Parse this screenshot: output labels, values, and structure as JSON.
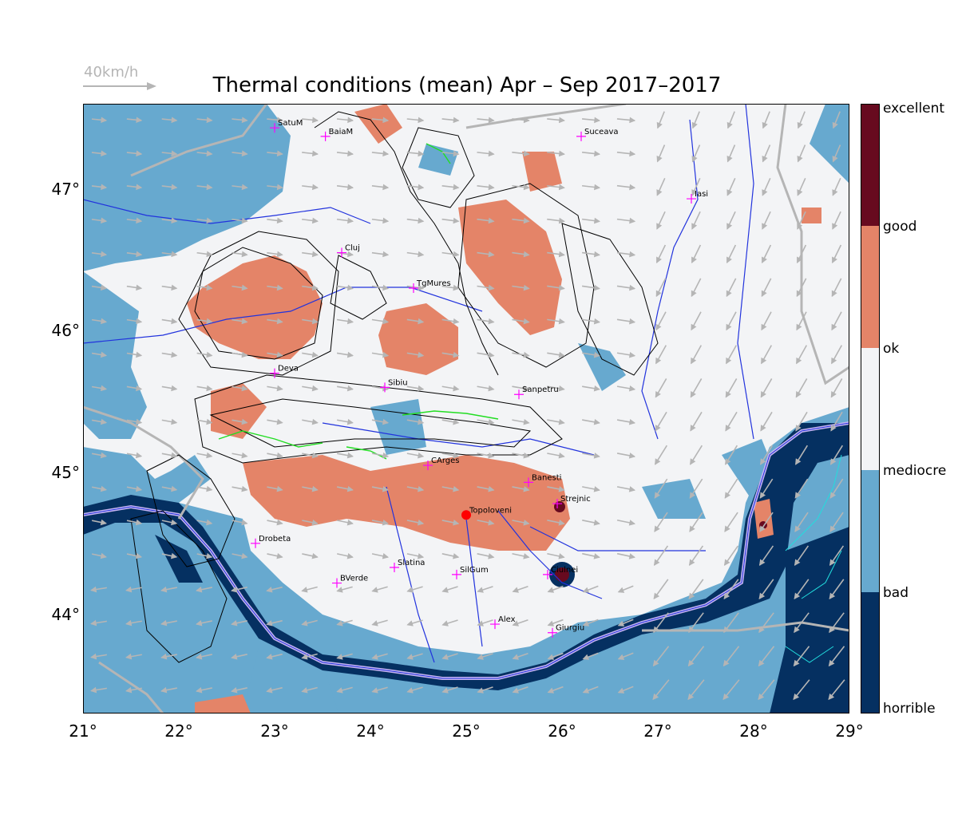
{
  "title": "Thermal conditions (mean) Apr – Sep  2017–2017",
  "scale": {
    "label": "40km/h"
  },
  "map": {
    "lon_range": [
      21,
      29
    ],
    "lat_range": [
      43.3,
      47.6
    ],
    "lon_ticks": [
      "21°",
      "22°",
      "23°",
      "24°",
      "25°",
      "26°",
      "27°",
      "28°",
      "29°"
    ],
    "lat_ticks": [
      "47°",
      "46°",
      "45°",
      "44°"
    ],
    "lat_tick_values": [
      47,
      46,
      45,
      44
    ]
  },
  "legend": {
    "labels": [
      "excellent",
      "good",
      "ok",
      "mediocre",
      "bad",
      "horrible"
    ],
    "colors": {
      "excellent": "#670a1f",
      "good": "#e48468",
      "ok": "#f3f4f6",
      "mediocre": "#f3f4f6",
      "bad": "#67a9cf",
      "horrible": "#053061"
    }
  },
  "cities": [
    {
      "name": "SatuM",
      "lon": 23.0,
      "lat": 47.43
    },
    {
      "name": "BaiaM",
      "lon": 23.53,
      "lat": 47.37
    },
    {
      "name": "Suceava",
      "lon": 26.2,
      "lat": 47.37
    },
    {
      "name": "Iasi",
      "lon": 27.35,
      "lat": 46.93
    },
    {
      "name": "Cluj",
      "lon": 23.7,
      "lat": 46.55
    },
    {
      "name": "TgMures",
      "lon": 24.45,
      "lat": 46.3
    },
    {
      "name": "Deva",
      "lon": 23.0,
      "lat": 45.7
    },
    {
      "name": "Sibiu",
      "lon": 24.15,
      "lat": 45.6
    },
    {
      "name": "Sanpetru",
      "lon": 25.55,
      "lat": 45.55
    },
    {
      "name": "CArges",
      "lon": 24.6,
      "lat": 45.05
    },
    {
      "name": "Banesti",
      "lon": 25.65,
      "lat": 44.93
    },
    {
      "name": "Strejnic",
      "lon": 25.95,
      "lat": 44.78
    },
    {
      "name": "Topoloveni",
      "lon": 25.0,
      "lat": 44.7
    },
    {
      "name": "Drobeta",
      "lon": 22.8,
      "lat": 44.5
    },
    {
      "name": "Slatina",
      "lon": 24.25,
      "lat": 44.33
    },
    {
      "name": "SilGum",
      "lon": 24.9,
      "lat": 44.28
    },
    {
      "name": "Ciulnei",
      "lon": 25.85,
      "lat": 44.28
    },
    {
      "name": "BVerde",
      "lon": 23.65,
      "lat": 44.22
    },
    {
      "name": "Alex",
      "lon": 25.3,
      "lat": 43.93
    },
    {
      "name": "Giurgiu",
      "lon": 25.9,
      "lat": 43.87
    }
  ]
}
